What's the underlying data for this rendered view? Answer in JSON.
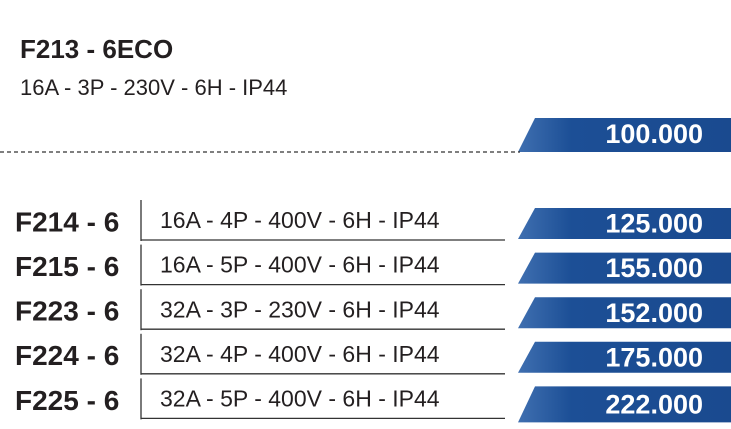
{
  "header": {
    "title": "F213 - 6ECO",
    "subtitle": "16A - 3P - 230V - 6H - IP44",
    "price": "100.000"
  },
  "rows": [
    {
      "code": "F214 - 6",
      "spec": "16A - 4P - 400V - 6H - IP44",
      "price": "125.000"
    },
    {
      "code": "F215 - 6",
      "spec": "16A - 5P - 400V - 6H - IP44",
      "price": "155.000"
    },
    {
      "code": "F223 - 6",
      "spec": "32A - 3P - 230V - 6H - IP44",
      "price": "152.000"
    },
    {
      "code": "F224 - 6",
      "spec": "32A - 4P - 400V - 6H - IP44",
      "price": "175.000"
    },
    {
      "code": "F225 - 6",
      "spec": "32A - 5P - 400V - 6H - IP44",
      "price": "222.000"
    }
  ]
}
